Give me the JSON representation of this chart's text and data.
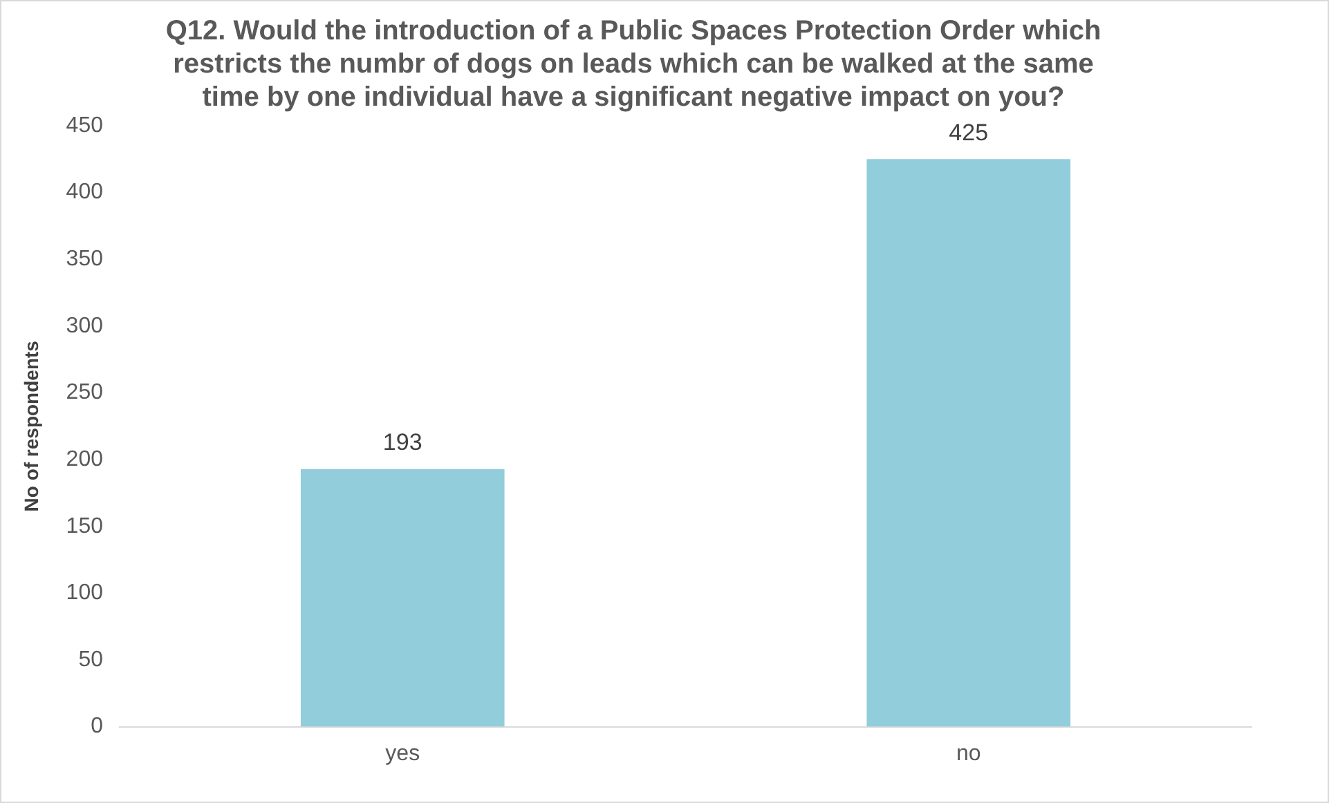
{
  "chart_data": {
    "type": "bar",
    "title": "Q12. Would the introduction of a Public Spaces Protection Order which restricts the numbr of dogs on leads which can be walked at the same time by one individual have a significant negative impact on you?",
    "ylabel": "No of respondents",
    "categories": [
      "yes",
      "no"
    ],
    "values": [
      193,
      425
    ],
    "color": "#92cddc",
    "ylim": [
      0,
      450
    ],
    "yticks": [
      0,
      50,
      100,
      150,
      200,
      250,
      300,
      350,
      400,
      450
    ],
    "grid": false,
    "data_labels": true
  }
}
